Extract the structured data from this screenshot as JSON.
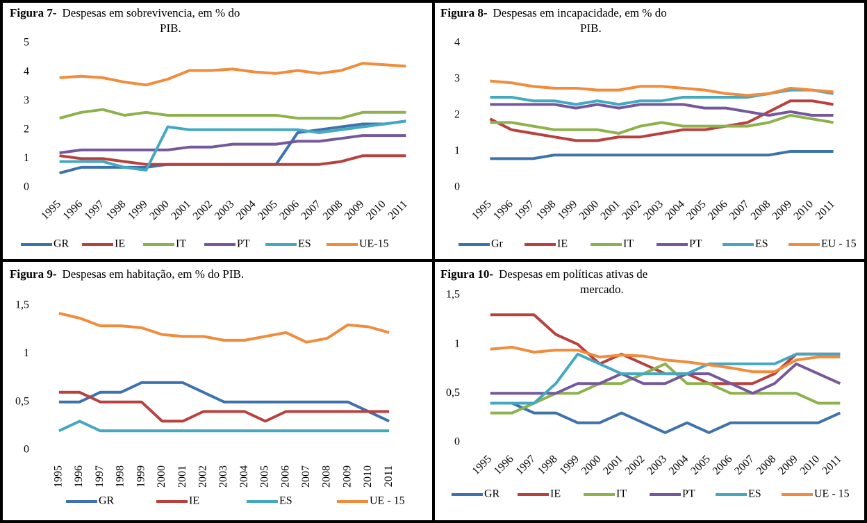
{
  "chart_data": [
    {
      "type": "line",
      "title_label": "Figura 7-",
      "title": [
        "Despesas em sobrevivencia, em % do",
        "PIB."
      ],
      "categories": [
        "1995",
        "1996",
        "1997",
        "1998",
        "1999",
        "2000",
        "2001",
        "2002",
        "2003",
        "2004",
        "2005",
        "2006",
        "2007",
        "2008",
        "2009",
        "2010",
        "2011"
      ],
      "ylim": [
        0,
        5
      ],
      "yticks": [
        0,
        1,
        2,
        3,
        4,
        5
      ],
      "grid": false,
      "legend": "bottom",
      "series": [
        {
          "name": "GR",
          "color": "#3d72ad",
          "values": [
            0.5,
            0.7,
            0.7,
            0.7,
            0.7,
            0.8,
            0.8,
            0.8,
            0.8,
            0.8,
            0.8,
            1.9,
            2.0,
            2.1,
            2.2,
            2.2,
            2.3
          ]
        },
        {
          "name": "IE",
          "color": "#b8413e",
          "values": [
            1.1,
            1.0,
            1.0,
            0.9,
            0.8,
            0.8,
            0.8,
            0.8,
            0.8,
            0.8,
            0.8,
            0.8,
            0.8,
            0.9,
            1.1,
            1.1,
            1.1
          ]
        },
        {
          "name": "IT",
          "color": "#8db24c",
          "values": [
            2.4,
            2.6,
            2.7,
            2.5,
            2.6,
            2.5,
            2.5,
            2.5,
            2.5,
            2.5,
            2.5,
            2.4,
            2.4,
            2.4,
            2.6,
            2.6,
            2.6
          ]
        },
        {
          "name": "PT",
          "color": "#75589c",
          "values": [
            1.2,
            1.3,
            1.3,
            1.3,
            1.3,
            1.3,
            1.4,
            1.4,
            1.5,
            1.5,
            1.5,
            1.6,
            1.6,
            1.7,
            1.8,
            1.8,
            1.8
          ]
        },
        {
          "name": "ES",
          "color": "#44a8c1",
          "values": [
            0.9,
            0.9,
            0.9,
            0.7,
            0.6,
            2.1,
            2.0,
            2.0,
            2.0,
            2.0,
            2.0,
            2.0,
            1.9,
            2.0,
            2.1,
            2.2,
            2.3
          ]
        },
        {
          "name": "UE-15",
          "color": "#f08c3c",
          "values": [
            3.8,
            3.85,
            3.8,
            3.65,
            3.55,
            3.75,
            4.05,
            4.05,
            4.1,
            4.0,
            3.95,
            4.05,
            3.95,
            4.05,
            4.3,
            4.25,
            4.2
          ]
        }
      ]
    },
    {
      "type": "line",
      "title_label": "Figura 8-",
      "title": [
        "Despesas em incapacidade, em % do",
        "PIB."
      ],
      "categories": [
        "1995",
        "1996",
        "1997",
        "1998",
        "1999",
        "2000",
        "2001",
        "2002",
        "2003",
        "2004",
        "2005",
        "2006",
        "2007",
        "2008",
        "2009",
        "2010",
        "2011"
      ],
      "ylim": [
        0,
        4
      ],
      "yticks": [
        0,
        1,
        2,
        3,
        4
      ],
      "grid": false,
      "legend": "bottom",
      "series": [
        {
          "name": "Gr",
          "color": "#3d72ad",
          "values": [
            0.8,
            0.8,
            0.8,
            0.9,
            0.9,
            0.9,
            0.9,
            0.9,
            0.9,
            0.9,
            0.9,
            0.9,
            0.9,
            0.9,
            1.0,
            1.0,
            1.0
          ]
        },
        {
          "name": "IE",
          "color": "#b8413e",
          "values": [
            1.9,
            1.6,
            1.5,
            1.4,
            1.3,
            1.3,
            1.4,
            1.4,
            1.5,
            1.6,
            1.6,
            1.7,
            1.8,
            2.1,
            2.4,
            2.4,
            2.3
          ]
        },
        {
          "name": "IT",
          "color": "#8db24c",
          "values": [
            1.8,
            1.8,
            1.7,
            1.6,
            1.6,
            1.6,
            1.5,
            1.7,
            1.8,
            1.7,
            1.7,
            1.7,
            1.7,
            1.8,
            2.0,
            1.9,
            1.8
          ]
        },
        {
          "name": "PT",
          "color": "#75589c",
          "values": [
            2.3,
            2.3,
            2.3,
            2.3,
            2.2,
            2.3,
            2.2,
            2.3,
            2.3,
            2.3,
            2.2,
            2.2,
            2.1,
            2.0,
            2.1,
            2.0,
            2.0
          ]
        },
        {
          "name": "ES",
          "color": "#44a8c1",
          "values": [
            2.5,
            2.5,
            2.4,
            2.4,
            2.3,
            2.4,
            2.3,
            2.4,
            2.4,
            2.5,
            2.5,
            2.5,
            2.5,
            2.6,
            2.7,
            2.7,
            2.6
          ]
        },
        {
          "name": "EU - 15",
          "color": "#f08c3c",
          "values": [
            2.95,
            2.9,
            2.8,
            2.75,
            2.75,
            2.7,
            2.7,
            2.8,
            2.8,
            2.75,
            2.7,
            2.6,
            2.55,
            2.6,
            2.75,
            2.7,
            2.65
          ]
        }
      ]
    },
    {
      "type": "line",
      "title_label": "Figura 9-",
      "title": [
        "Despesas em habitação, em % do PIB."
      ],
      "categories": [
        "1995",
        "1996",
        "1997",
        "1998",
        "1999",
        "2000",
        "2001",
        "2002",
        "2003",
        "2004",
        "2005",
        "2006",
        "2007",
        "2008",
        "2009",
        "2010",
        "2011"
      ],
      "ylim": [
        0,
        1.5
      ],
      "yticks": [
        0,
        {
          "value": 0.5,
          "label": "0,5"
        },
        1,
        {
          "value": 1.5,
          "label": "1,5"
        }
      ],
      "grid": false,
      "legend": "bottom",
      "series": [
        {
          "name": "GR",
          "color": "#3d72ad",
          "values": [
            0.5,
            0.5,
            0.6,
            0.6,
            0.7,
            0.7,
            0.7,
            0.6,
            0.5,
            0.5,
            0.5,
            0.5,
            0.5,
            0.5,
            0.5,
            0.4,
            0.3
          ]
        },
        {
          "name": "IE",
          "color": "#b8413e",
          "values": [
            0.6,
            0.6,
            0.5,
            0.5,
            0.5,
            0.3,
            0.3,
            0.4,
            0.4,
            0.4,
            0.3,
            0.4,
            0.4,
            0.4,
            0.4,
            0.4,
            0.4
          ]
        },
        {
          "name": "ES",
          "color": "#44a8c1",
          "values": [
            0.2,
            0.3,
            0.2,
            0.2,
            0.2,
            0.2,
            0.2,
            0.2,
            0.2,
            0.2,
            0.2,
            0.2,
            0.2,
            0.2,
            0.2,
            0.2,
            0.2
          ]
        },
        {
          "name": "UE - 15",
          "color": "#f08c3c",
          "values": [
            1.42,
            1.37,
            1.29,
            1.29,
            1.27,
            1.2,
            1.18,
            1.18,
            1.14,
            1.14,
            1.18,
            1.22,
            1.12,
            1.16,
            1.3,
            1.28,
            1.22
          ]
        }
      ]
    },
    {
      "type": "line",
      "title_label": "Figura 10-",
      "title": [
        "Despesas em políticas ativas de",
        "mercado."
      ],
      "categories": [
        "1995",
        "1996",
        "1997",
        "1998",
        "1999",
        "2000",
        "2001",
        "2002",
        "2003",
        "2004",
        "2005",
        "2006",
        "2007",
        "2008",
        "2009",
        "2010",
        "2011"
      ],
      "ylim": [
        0,
        1.5
      ],
      "yticks": [
        0,
        {
          "value": 0.5,
          "label": "0,5"
        },
        1,
        {
          "value": 1.5,
          "label": "1,5"
        }
      ],
      "grid": false,
      "legend": "bottom",
      "series": [
        {
          "name": "GR",
          "color": "#3d72ad",
          "values": [
            0.4,
            0.4,
            0.3,
            0.3,
            0.2,
            0.2,
            0.3,
            0.2,
            0.1,
            0.2,
            0.1,
            0.2,
            0.2,
            0.2,
            0.2,
            0.2,
            0.3
          ]
        },
        {
          "name": "IE",
          "color": "#b8413e",
          "values": [
            1.3,
            1.3,
            1.3,
            1.1,
            1.0,
            0.8,
            0.9,
            0.8,
            0.7,
            0.7,
            0.6,
            0.6,
            0.6,
            0.7,
            0.9,
            0.9,
            0.9
          ]
        },
        {
          "name": "IT",
          "color": "#8db24c",
          "values": [
            0.3,
            0.3,
            0.4,
            0.5,
            0.5,
            0.6,
            0.6,
            0.7,
            0.8,
            0.6,
            0.6,
            0.5,
            0.5,
            0.5,
            0.5,
            0.4,
            0.4
          ]
        },
        {
          "name": "PT",
          "color": "#75589c",
          "values": [
            0.5,
            0.5,
            0.5,
            0.5,
            0.6,
            0.6,
            0.7,
            0.6,
            0.6,
            0.7,
            0.7,
            0.6,
            0.5,
            0.6,
            0.8,
            0.7,
            0.6
          ]
        },
        {
          "name": "ES",
          "color": "#44a8c1",
          "values": [
            0.4,
            0.4,
            0.4,
            0.6,
            0.9,
            0.8,
            0.7,
            0.7,
            0.7,
            0.7,
            0.8,
            0.8,
            0.8,
            0.8,
            0.9,
            0.9,
            0.9
          ]
        },
        {
          "name": "UE - 15",
          "color": "#f08c3c",
          "values": [
            0.95,
            0.97,
            0.92,
            0.94,
            0.94,
            0.87,
            0.89,
            0.88,
            0.84,
            0.82,
            0.79,
            0.76,
            0.72,
            0.72,
            0.84,
            0.87,
            0.87
          ]
        }
      ]
    }
  ]
}
